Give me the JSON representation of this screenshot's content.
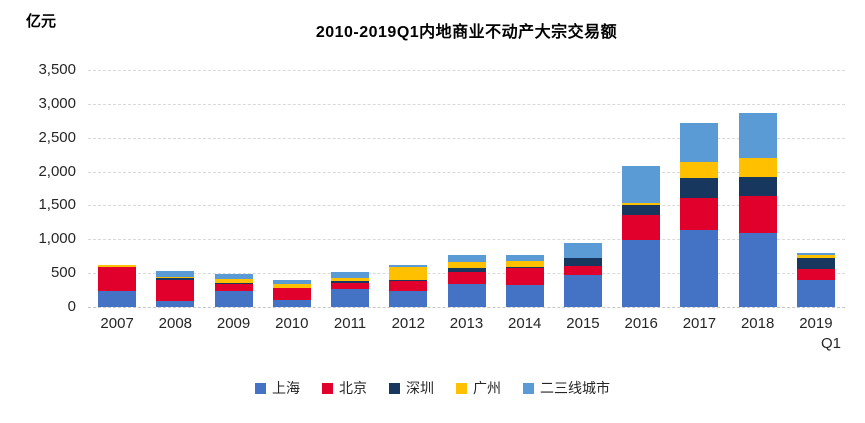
{
  "chart_data": {
    "type": "bar",
    "stacked": true,
    "title": "2010-2019Q1内地商业不动产大宗交易额",
    "unit_label": "亿元",
    "categories": [
      "2007",
      "2008",
      "2009",
      "2010",
      "2011",
      "2012",
      "2013",
      "2014",
      "2015",
      "2016",
      "2017",
      "2018",
      "2019\nQ1"
    ],
    "series": [
      {
        "name": "上海",
        "color": "#4472C4",
        "values": [
          230,
          85,
          235,
          110,
          270,
          240,
          345,
          320,
          470,
          990,
          1135,
          1090,
          405
        ]
      },
      {
        "name": "北京",
        "color": "#E0002B",
        "values": [
          355,
          320,
          110,
          165,
          85,
          150,
          170,
          260,
          135,
          370,
          480,
          550,
          150
        ]
      },
      {
        "name": "深圳",
        "color": "#17375E",
        "values": [
          10,
          25,
          5,
          5,
          30,
          10,
          65,
          15,
          115,
          140,
          295,
          285,
          175
        ]
      },
      {
        "name": "广州",
        "color": "#FFC000",
        "values": [
          20,
          20,
          60,
          55,
          50,
          190,
          85,
          90,
          5,
          40,
          235,
          280,
          40
        ]
      },
      {
        "name": "二三线城市",
        "color": "#5B9BD5",
        "values": [
          10,
          75,
          75,
          70,
          85,
          30,
          110,
          80,
          225,
          540,
          570,
          665,
          30
        ]
      }
    ],
    "ylim": [
      0,
      3500
    ],
    "ytick_step": 500,
    "ytick_labels": [
      "0",
      "500",
      "1,000",
      "1,500",
      "2,000",
      "2,500",
      "3,000",
      "3,500"
    ],
    "grid": "horizontal-dashed",
    "legend_position": "bottom"
  }
}
